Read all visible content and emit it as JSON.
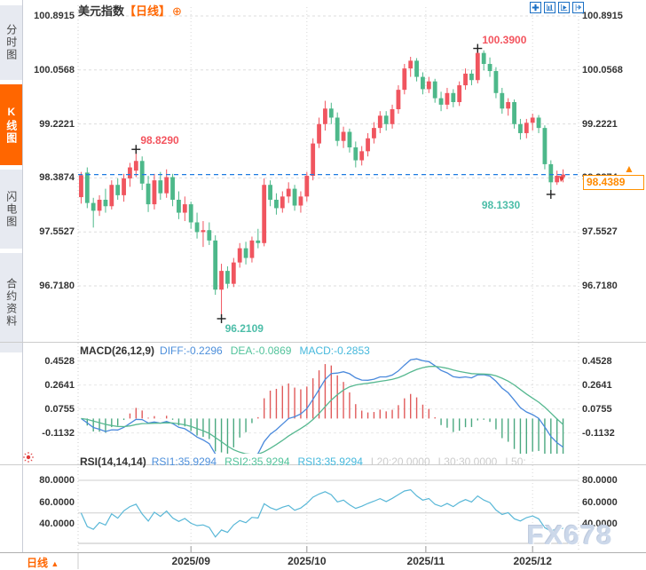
{
  "header": {
    "instrument": "美元指数",
    "period": "【日线】",
    "add_icon": "⊕"
  },
  "sidebar": {
    "tabs": [
      {
        "label": "分时图",
        "active": false
      },
      {
        "label": "K线图",
        "active": true
      },
      {
        "label": "闪电图",
        "active": false
      },
      {
        "label": "合约资料",
        "active": false
      }
    ]
  },
  "toolbar": {
    "icons": [
      "crosshair",
      "axis-scale",
      "axis-playback",
      "export-right"
    ]
  },
  "price_tag": {
    "value": "98.4389",
    "triangle": "▲"
  },
  "watermark": "FX678",
  "footer": {
    "period_label": "日线",
    "period_arrow": "▲",
    "dates": [
      "2025/09",
      "2025/10",
      "2025/11",
      "2025/12"
    ]
  },
  "panes": {
    "main": {
      "axis_labels": [
        "100.8915",
        "100.0568",
        "99.2221",
        "98.3874",
        "97.5527",
        "96.7180"
      ]
    },
    "macd": {
      "title": "MACD(26,12,9)",
      "values": [
        {
          "label": "DIFF:-0.2296",
          "color": "#4d8fdb"
        },
        {
          "label": "DEA:-0.0869",
          "color": "#52c39b"
        },
        {
          "label": "MACD:-0.2853",
          "color": "#45b8dc"
        }
      ],
      "axis_labels": [
        "0.4528",
        "0.2641",
        "0.0755",
        "-0.1132"
      ]
    },
    "rsi": {
      "title": "RSI(14,14,14)",
      "values": [
        {
          "label": "RSI1:35.9294",
          "color": "#4d8fdb"
        },
        {
          "label": "RSI2:35.9294",
          "color": "#52c39b"
        },
        {
          "label": "RSI3:35.9294",
          "color": "#45b8dc"
        },
        {
          "label": "L20:20.0000",
          "color": "#cccccc"
        },
        {
          "label": "L30:30.0000",
          "color": "#cccccc"
        },
        {
          "label": "L50:",
          "color": "#cccccc"
        }
      ],
      "axis_labels": [
        "80.0000",
        "60.0000",
        "40.0000"
      ]
    }
  },
  "colors": {
    "up": "#f0555f",
    "down": "#4db88a",
    "accent": "#ff6600",
    "price_line": "#1e7be0",
    "diff_line": "#4a89dc",
    "dea_line": "#56b890",
    "hist_up": "#e05a5a",
    "hist_down": "#4aa87f",
    "rsi_line": "#58b7d7",
    "annotation_high": "#f3545e",
    "annotation_low": "#4cbda8",
    "grid": "#dddddd"
  },
  "chart_data": {
    "type": "candlestick",
    "title": "美元指数 日线 (US Dollar Index, daily)",
    "current_price": 98.4389,
    "main_axis_ticks": [
      100.8915,
      100.0568,
      99.2221,
      98.3874,
      97.5527,
      96.718
    ],
    "macd_axis_ticks": [
      0.4528,
      0.2641,
      0.0755,
      -0.1132
    ],
    "rsi_axis_ticks": [
      80.0,
      60.0,
      40.0
    ],
    "date_ticks": [
      {
        "label": "2025/09",
        "index": 18
      },
      {
        "label": "2025/10",
        "index": 37
      },
      {
        "label": "2025/11",
        "index": 56.5
      },
      {
        "label": "2025/12",
        "index": 74
      }
    ],
    "key_points": [
      {
        "index": 9,
        "price": 98.829,
        "label": "98.8290",
        "kind": "high",
        "side": "right"
      },
      {
        "index": 65,
        "price": 100.39,
        "label": "100.3900",
        "kind": "high",
        "side": "right"
      },
      {
        "index": 23,
        "price": 96.2109,
        "label": "96.2109",
        "kind": "low",
        "side": "right"
      },
      {
        "index": 77,
        "price": 98.133,
        "label": "98.1330",
        "kind": "low",
        "side": "left"
      }
    ],
    "indicators": {
      "macd": {
        "fast": 12,
        "slow": 26,
        "signal": 9,
        "diff": -0.2296,
        "dea": -0.0869,
        "macd": -0.2853
      },
      "rsi": {
        "periods": [
          14,
          14,
          14
        ],
        "rsi1": 35.9294,
        "rsi2": 35.9294,
        "rsi3": 35.9294,
        "levels": [
          20,
          30,
          50
        ]
      }
    },
    "candles": [
      [
        98.09,
        98.48,
        97.99,
        98.43
      ],
      [
        98.47,
        98.55,
        97.92,
        98.0
      ],
      [
        98.0,
        98.08,
        97.62,
        97.88
      ],
      [
        97.88,
        98.12,
        97.8,
        98.05
      ],
      [
        98.05,
        98.22,
        97.85,
        97.95
      ],
      [
        97.95,
        98.35,
        97.9,
        98.28
      ],
      [
        98.28,
        98.38,
        98.05,
        98.12
      ],
      [
        98.12,
        98.45,
        98.02,
        98.38
      ],
      [
        98.38,
        98.62,
        98.25,
        98.55
      ],
      [
        98.5,
        98.83,
        98.4,
        98.65
      ],
      [
        98.65,
        98.72,
        98.2,
        98.3
      ],
      [
        98.3,
        98.42,
        97.86,
        97.98
      ],
      [
        97.98,
        98.45,
        97.9,
        98.35
      ],
      [
        98.35,
        98.48,
        98.05,
        98.15
      ],
      [
        98.15,
        98.52,
        98.08,
        98.4
      ],
      [
        98.4,
        98.45,
        97.95,
        98.05
      ],
      [
        98.05,
        98.18,
        97.75,
        97.85
      ],
      [
        97.85,
        98.1,
        97.72,
        97.98
      ],
      [
        97.98,
        98.02,
        97.6,
        97.7
      ],
      [
        97.7,
        97.85,
        97.45,
        97.55
      ],
      [
        97.55,
        97.72,
        97.32,
        97.58
      ],
      [
        97.58,
        97.7,
        97.35,
        97.42
      ],
      [
        97.42,
        97.5,
        96.58,
        96.66
      ],
      [
        96.66,
        97.06,
        96.211,
        96.95
      ],
      [
        96.95,
        97.02,
        96.68,
        96.75
      ],
      [
        96.75,
        97.15,
        96.7,
        97.08
      ],
      [
        97.08,
        97.38,
        97.0,
        97.3
      ],
      [
        97.3,
        97.4,
        97.05,
        97.15
      ],
      [
        97.15,
        97.48,
        97.08,
        97.42
      ],
      [
        97.42,
        97.6,
        97.3,
        97.38
      ],
      [
        97.38,
        98.38,
        97.33,
        98.28
      ],
      [
        98.28,
        98.35,
        97.95,
        98.05
      ],
      [
        98.05,
        98.15,
        97.82,
        97.92
      ],
      [
        97.92,
        98.18,
        97.85,
        98.1
      ],
      [
        98.1,
        98.32,
        98.0,
        98.22
      ],
      [
        98.22,
        98.28,
        97.88,
        97.96
      ],
      [
        97.96,
        98.18,
        97.85,
        98.1
      ],
      [
        98.1,
        98.48,
        98.02,
        98.42
      ],
      [
        98.42,
        99.0,
        98.35,
        98.92
      ],
      [
        98.92,
        99.32,
        98.85,
        99.22
      ],
      [
        99.22,
        99.58,
        99.12,
        99.46
      ],
      [
        99.46,
        99.55,
        99.22,
        99.32
      ],
      [
        99.32,
        99.4,
        98.88,
        98.96
      ],
      [
        98.96,
        99.18,
        98.85,
        99.1
      ],
      [
        99.1,
        99.15,
        98.78,
        98.86
      ],
      [
        98.86,
        98.95,
        98.55,
        98.66
      ],
      [
        98.66,
        98.88,
        98.58,
        98.8
      ],
      [
        98.8,
        99.08,
        98.72,
        99.0
      ],
      [
        99.0,
        99.25,
        98.92,
        99.16
      ],
      [
        99.16,
        99.42,
        99.08,
        99.35
      ],
      [
        99.35,
        99.42,
        99.12,
        99.22
      ],
      [
        99.22,
        99.52,
        99.15,
        99.45
      ],
      [
        99.45,
        99.82,
        99.38,
        99.75
      ],
      [
        99.75,
        100.15,
        99.68,
        100.08
      ],
      [
        100.08,
        100.26,
        99.95,
        100.2
      ],
      [
        100.2,
        100.24,
        99.88,
        99.95
      ],
      [
        99.95,
        100.02,
        99.68,
        99.76
      ],
      [
        99.76,
        99.95,
        99.7,
        99.88
      ],
      [
        99.88,
        99.92,
        99.55,
        99.62
      ],
      [
        99.62,
        99.72,
        99.42,
        99.52
      ],
      [
        99.52,
        99.78,
        99.45,
        99.7
      ],
      [
        99.7,
        99.76,
        99.48,
        99.56
      ],
      [
        99.56,
        99.88,
        99.5,
        99.82
      ],
      [
        99.82,
        100.08,
        99.75,
        100.0
      ],
      [
        100.0,
        100.06,
        99.82,
        99.9
      ],
      [
        99.9,
        100.39,
        99.85,
        100.32
      ],
      [
        100.32,
        100.36,
        100.05,
        100.15
      ],
      [
        100.15,
        100.25,
        99.95,
        100.04
      ],
      [
        100.04,
        100.1,
        99.62,
        99.7
      ],
      [
        99.7,
        99.78,
        99.38,
        99.46
      ],
      [
        99.46,
        99.62,
        99.35,
        99.56
      ],
      [
        99.56,
        99.6,
        99.15,
        99.22
      ],
      [
        99.22,
        99.3,
        98.98,
        99.08
      ],
      [
        99.08,
        99.3,
        99.0,
        99.24
      ],
      [
        99.24,
        99.38,
        99.12,
        99.32
      ],
      [
        99.32,
        99.36,
        99.08,
        99.16
      ],
      [
        99.16,
        99.2,
        98.52,
        98.6
      ],
      [
        98.6,
        98.66,
        98.133,
        98.32
      ],
      [
        98.32,
        98.5,
        98.28,
        98.42
      ],
      [
        98.4,
        98.52,
        98.32,
        98.44
      ]
    ]
  }
}
